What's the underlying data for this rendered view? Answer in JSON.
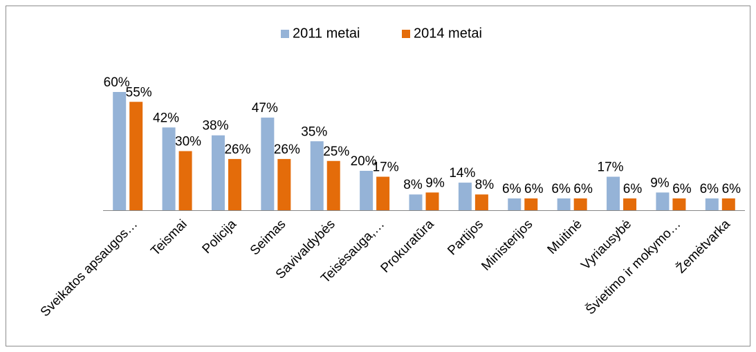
{
  "chart_data": {
    "type": "bar",
    "categories": [
      "Sveikatos apsaugos…",
      "Teismai",
      "Policija",
      "Seimas",
      "Savivaldybės",
      "Teisėsauga,…",
      "Prokuratūra",
      "Partijos",
      "Ministerijos",
      "Muitinė",
      "Vyriausybė",
      "Švietimo ir mokymo…",
      "Žemėtvarka"
    ],
    "series": [
      {
        "name": "2011 metai",
        "color": "#95b3d7",
        "values": [
          60,
          42,
          38,
          47,
          35,
          20,
          8,
          14,
          6,
          6,
          17,
          9,
          6
        ]
      },
      {
        "name": "2014 metai",
        "color": "#e46c0a",
        "values": [
          55,
          30,
          26,
          26,
          25,
          17,
          9,
          8,
          6,
          6,
          6,
          6,
          6
        ]
      }
    ],
    "value_labels": {
      "s0": [
        "60%",
        "42%",
        "38%",
        "47%",
        "35%",
        "20%",
        "8%",
        "14%",
        "6%",
        "6%",
        "17%",
        "9%",
        "6%"
      ],
      "s1": [
        "55%",
        "30%",
        "26%",
        "26%",
        "25%",
        "17%",
        "9%",
        "8%",
        "6%",
        "6%",
        "6%",
        "6%",
        "6%"
      ]
    },
    "ylim": [
      0,
      60
    ],
    "grid": false,
    "legend_position": "top",
    "title": "",
    "xlabel": "",
    "ylabel": ""
  }
}
